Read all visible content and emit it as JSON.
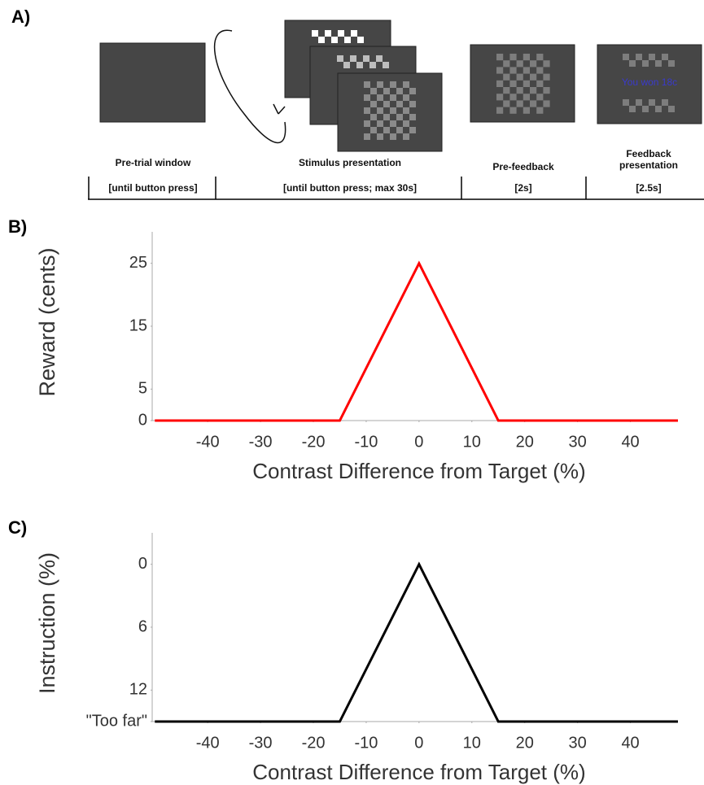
{
  "panel_a": {
    "label": "A)",
    "feedback_text": "You won 18c",
    "stages": [
      {
        "name": "Pre-trial window",
        "duration": "[until button press]"
      },
      {
        "name": "Stimulus presentation",
        "duration": "[until button press; max 30s]"
      },
      {
        "name": "Pre-feedback",
        "duration": "[2s]"
      },
      {
        "name": "Feedback presentation",
        "duration": "[2.5s]"
      }
    ]
  },
  "chart_data": [
    {
      "type": "line",
      "panel_label": "B)",
      "y_label": "Reward (cents)",
      "x_label": "Contrast Difference from Target (%)",
      "x": [
        -50,
        -15,
        0,
        15,
        49
      ],
      "values": [
        0,
        0,
        25,
        0,
        0
      ],
      "color": "#ff0000",
      "xlim": [
        -50.5,
        49
      ],
      "xticks": [
        -40,
        -30,
        -20,
        -10,
        0,
        10,
        20,
        30,
        40
      ],
      "ylim": [
        0,
        30
      ],
      "yticks": [
        0,
        5,
        15,
        25
      ]
    },
    {
      "type": "line",
      "panel_label": "C)",
      "y_label": "Instruction (%)",
      "x_label": "Contrast Difference from Target (%)",
      "x": [
        -50,
        -15,
        0,
        15,
        49
      ],
      "values": [
        15,
        15,
        0,
        15,
        15
      ],
      "color": "#000000",
      "xlim": [
        -50.5,
        49
      ],
      "xticks": [
        -40,
        -30,
        -20,
        -10,
        0,
        10,
        20,
        30,
        40
      ],
      "ylim": [
        15,
        -3
      ],
      "yticks": [
        0,
        6,
        12,
        {
          "value": 15,
          "label": "\"Too far\""
        }
      ]
    }
  ]
}
